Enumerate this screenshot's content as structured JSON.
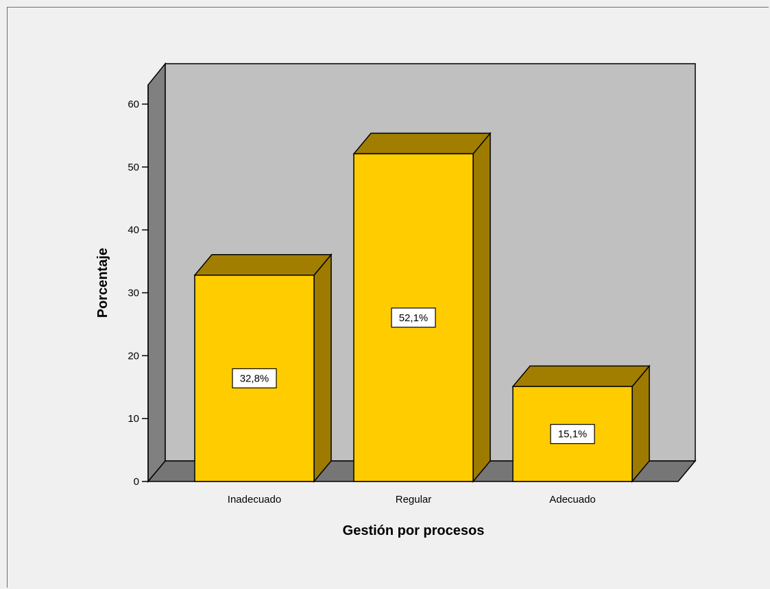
{
  "chart_data": {
    "type": "bar",
    "categories": [
      "Inadecuado",
      "Regular",
      "Adecuado"
    ],
    "values": [
      32.8,
      52.1,
      15.1
    ],
    "data_labels": [
      "32,8%",
      "52,1%",
      "15,1%"
    ],
    "title": "",
    "xlabel": "Gestión por procesos",
    "ylabel": "Porcentaje",
    "ylim": [
      0,
      60
    ],
    "yticks": [
      0,
      10,
      20,
      30,
      40,
      50,
      60
    ],
    "grid": false,
    "legend": "none",
    "style": "3d",
    "colors": {
      "bar_front": "#ffcc00",
      "bar_top": "#a27e00",
      "bar_side": "#9c7b00",
      "wall": "#c0c0c0",
      "floor": "#767676",
      "side_wall": "#808080",
      "background": "#f0f0f0"
    }
  }
}
